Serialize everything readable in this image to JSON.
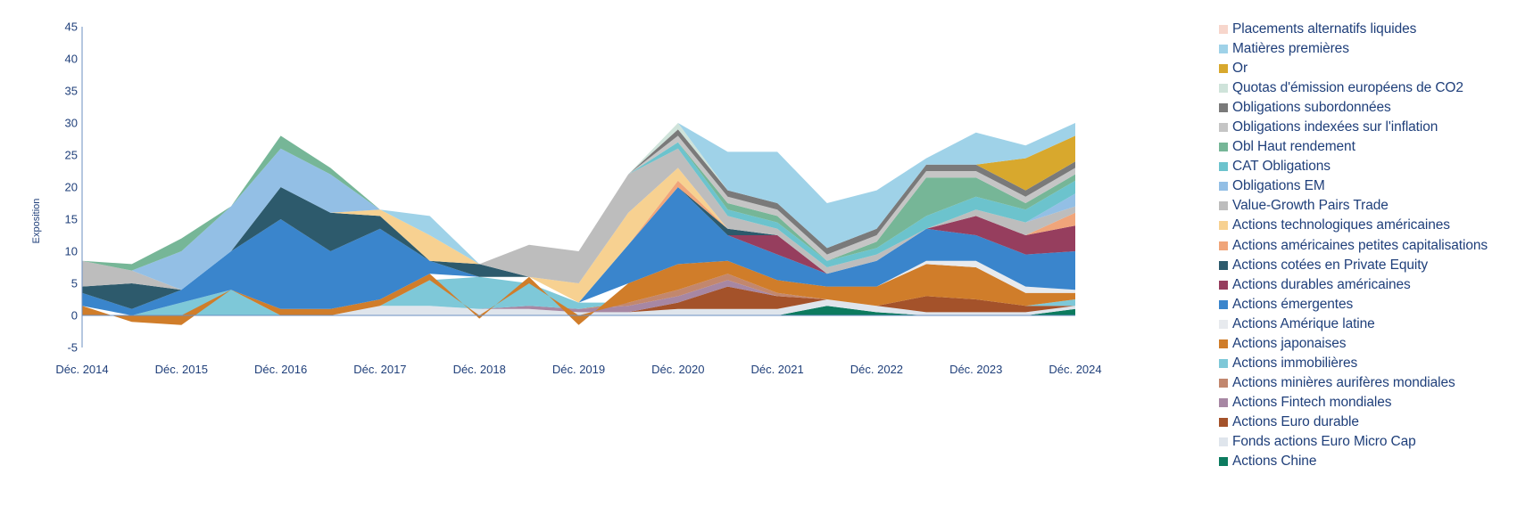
{
  "chart_data": {
    "type": "area",
    "title": "",
    "xlabel": "",
    "ylabel": "Exposition",
    "ylim": [
      -5,
      45
    ],
    "yticks": [
      "45",
      "40",
      "35",
      "30",
      "25",
      "20",
      "15",
      "10",
      "5",
      "0",
      "-5"
    ],
    "x_tick_labels": [
      "Déc. 2014",
      "Déc. 2015",
      "Déc. 2016",
      "Déc. 2017",
      "Déc. 2018",
      "Déc. 2019",
      "Déc. 2020",
      "Déc. 2021",
      "Déc. 2022",
      "Déc. 2023",
      "Déc. 2024"
    ],
    "x": [
      "Déc. 2014",
      "Juin 2015",
      "Déc. 2015",
      "Juin 2016",
      "Déc. 2016",
      "Juin 2017",
      "Déc. 2017",
      "Juin 2018",
      "Déc. 2018",
      "Juin 2019",
      "Déc. 2019",
      "Juin 2020",
      "Déc. 2020",
      "Juin 2021",
      "Déc. 2021",
      "Juin 2022",
      "Déc. 2022",
      "Juin 2023",
      "Déc. 2023",
      "Juin 2024",
      "Déc. 2024"
    ],
    "grid": false,
    "legend_position": "right",
    "series": [
      {
        "name": "Actions Chine",
        "color": "#0c7b5f",
        "values": [
          0,
          0,
          0,
          0,
          0,
          0,
          0,
          0,
          0,
          0,
          0,
          0,
          0,
          0,
          0,
          1.5,
          0.5,
          0,
          0,
          0,
          1
        ]
      },
      {
        "name": "Fonds actions Euro Micro Cap",
        "color": "#dfe5ec",
        "values": [
          0,
          0,
          0,
          0,
          0,
          0,
          1.5,
          1.5,
          1,
          1,
          0.5,
          0.5,
          1,
          1,
          1,
          1,
          1,
          0.5,
          0.5,
          0.5,
          0.5
        ]
      },
      {
        "name": "Actions Euro durable",
        "color": "#a4522a",
        "values": [
          0,
          0,
          0,
          0,
          0,
          0,
          0,
          0,
          0,
          0,
          0,
          0,
          1,
          3.5,
          2,
          0,
          0,
          2.5,
          2,
          1,
          0
        ]
      },
      {
        "name": "Actions Fintech mondiales",
        "color": "#a787a3",
        "values": [
          0,
          0,
          0,
          0,
          0,
          0,
          0,
          0,
          0,
          0.5,
          0.5,
          1,
          1,
          1,
          0,
          0,
          0,
          0,
          0,
          0,
          0
        ]
      },
      {
        "name": "Actions minières aurifères mondiales",
        "color": "#c2876e",
        "values": [
          0,
          0,
          0,
          0,
          0,
          0,
          0,
          0,
          0,
          0,
          0,
          0.5,
          1,
          1,
          0.5,
          0,
          0,
          0,
          0,
          0,
          0
        ]
      },
      {
        "name": "Actions immobilières",
        "color": "#7ec8d8",
        "values": [
          0,
          0,
          2,
          4,
          0,
          0,
          0,
          4,
          5,
          3.5,
          1,
          0,
          0,
          0,
          0,
          0,
          0,
          0,
          0,
          0,
          1
        ]
      },
      {
        "name": "Actions japonaises",
        "color": "#d07d2a",
        "values": [
          1.5,
          -1,
          -1.5,
          0,
          1,
          1,
          1,
          1,
          -0.5,
          1,
          -1.5,
          3,
          4,
          2,
          2,
          2,
          3,
          5,
          5,
          2,
          1
        ]
      },
      {
        "name": "Actions Amérique latine",
        "color": "#e7eaee",
        "values": [
          0,
          0,
          0,
          0,
          0,
          0,
          0,
          0,
          0,
          0,
          0,
          0,
          0,
          0,
          0,
          0,
          0,
          0.5,
          1,
          1,
          0.5
        ]
      },
      {
        "name": "Actions émergentes",
        "color": "#3a85cc",
        "values": [
          2,
          1,
          2,
          6,
          14,
          9,
          11,
          2,
          0,
          0,
          0,
          6,
          12,
          4,
          4,
          2,
          4,
          5,
          4,
          5,
          6
        ]
      },
      {
        "name": "Actions durables américaines",
        "color": "#963e5e",
        "values": [
          0,
          0,
          0,
          0,
          0,
          0,
          0,
          0,
          0,
          0,
          0,
          0,
          0,
          0,
          3,
          0,
          0,
          0,
          3,
          3,
          4
        ]
      },
      {
        "name": "Actions cotées en Private Equity",
        "color": "#2d5a6c",
        "values": [
          1,
          4,
          0,
          0,
          5,
          6,
          2,
          0,
          2,
          0,
          0,
          0,
          0,
          1,
          0,
          0,
          0,
          0,
          0,
          0,
          0
        ]
      },
      {
        "name": "Actions américaines petites capitalisations",
        "color": "#f0a57a",
        "values": [
          0,
          0,
          0,
          0,
          0,
          0,
          0,
          0,
          0,
          0,
          0,
          0,
          1,
          0,
          0,
          0,
          0,
          0,
          0,
          0,
          2
        ]
      },
      {
        "name": "Actions technologiques américaines",
        "color": "#f7d191",
        "values": [
          0,
          0,
          0,
          0,
          0,
          0,
          1,
          4,
          0,
          0,
          3,
          5,
          2,
          0,
          0,
          0,
          0,
          0,
          0,
          0,
          0
        ]
      },
      {
        "name": "Value-Growth Pairs Trade",
        "color": "#bdbdbd",
        "values": [
          4,
          2,
          0,
          0,
          0,
          0,
          0,
          0,
          0,
          5,
          5,
          6,
          3,
          2,
          1,
          1,
          1,
          0,
          1,
          2,
          1
        ]
      },
      {
        "name": "Obligations EM",
        "color": "#93bfe5",
        "values": [
          0,
          0,
          6,
          7,
          6,
          6,
          0,
          0,
          0,
          0,
          0,
          0,
          0,
          0,
          0,
          0,
          0,
          0,
          0,
          0,
          2
        ]
      },
      {
        "name": "CAT Obligations",
        "color": "#6cc3cd",
        "values": [
          0,
          0,
          0,
          0,
          0,
          0,
          0,
          0,
          0,
          0,
          0,
          0,
          1,
          1,
          1,
          1,
          1,
          2,
          2,
          2,
          2
        ]
      },
      {
        "name": "Obl Haut rendement",
        "color": "#76b697",
        "values": [
          0,
          1,
          2,
          0,
          2,
          1,
          0,
          0,
          0,
          0,
          0,
          0,
          0,
          1,
          1,
          0,
          1,
          6,
          3,
          1,
          1
        ]
      },
      {
        "name": "Obligations indexées sur l'inflation",
        "color": "#c5c5c5",
        "values": [
          0,
          0,
          0,
          0,
          0,
          0,
          0,
          0,
          0,
          0,
          0,
          0,
          1,
          1,
          1,
          1,
          1,
          1,
          1,
          1,
          1
        ]
      },
      {
        "name": "Obligations subordonnées",
        "color": "#7a7a7a",
        "values": [
          0,
          0,
          0,
          0,
          0,
          0,
          0,
          0,
          0,
          0,
          0,
          0,
          1,
          1,
          1,
          1,
          1,
          1,
          1,
          1,
          1
        ]
      },
      {
        "name": "Quotas d'émission européens de CO2",
        "color": "#cfe3da",
        "values": [
          0,
          0,
          0,
          0,
          0,
          0,
          0,
          0,
          0,
          0,
          0,
          0,
          1,
          0,
          0,
          0,
          0,
          0,
          0,
          0,
          0
        ]
      },
      {
        "name": "Or",
        "color": "#d8a82d",
        "values": [
          0,
          0,
          0,
          0,
          0,
          0,
          0,
          0,
          0,
          0,
          0,
          0,
          0,
          0,
          0,
          0,
          0,
          0,
          0,
          5,
          4
        ]
      },
      {
        "name": "Matières premières",
        "color": "#9fd2e8",
        "values": [
          0,
          0,
          0,
          0,
          0,
          0,
          0,
          3,
          0,
          0,
          0,
          0,
          0,
          6,
          8,
          7,
          6,
          1,
          5,
          2,
          2
        ]
      },
      {
        "name": "Placements alternatifs liquides",
        "color": "#f7d6cc",
        "values": [
          0,
          0,
          0,
          0,
          0,
          0,
          0,
          0,
          0,
          0,
          0,
          0,
          0,
          0,
          0,
          0,
          0,
          0,
          0,
          0,
          0
        ]
      }
    ],
    "legend_order": [
      "Placements alternatifs liquides",
      "Matières premières",
      "Or",
      "Quotas d'émission européens de CO2",
      "Obligations subordonnées",
      "Obligations indexées sur l'inflation",
      "Obl Haut rendement",
      "CAT Obligations",
      "Obligations EM",
      "Value-Growth Pairs Trade",
      "Actions technologiques américaines",
      "Actions américaines petites capitalisations",
      "Actions cotées en Private Equity",
      "Actions durables américaines",
      "Actions émergentes",
      "Actions Amérique latine",
      "Actions japonaises",
      "Actions immobilières",
      "Actions minières aurifères mondiales",
      "Actions Fintech mondiales",
      "Actions Euro durable",
      "Fonds actions Euro Micro Cap",
      "Actions Chine"
    ]
  }
}
